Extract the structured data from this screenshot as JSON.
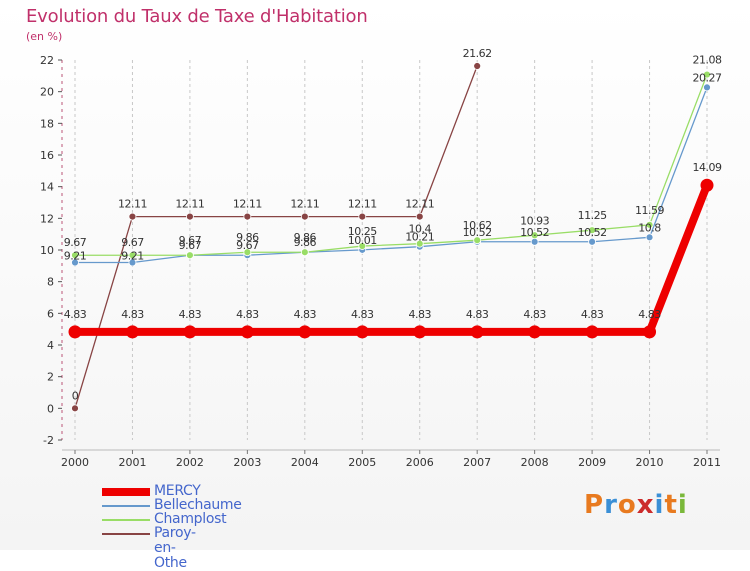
{
  "title": "Evolution du Taux de Taxe d'Habitation",
  "subtitle": "(en %)",
  "logo": {
    "text": "Proxiti",
    "colors": [
      "#e87a1f",
      "#3a8fd6",
      "#e87a1f",
      "#cc2b2b",
      "#3a8fd6",
      "#e87a1f",
      "#7ab83a"
    ]
  },
  "chart_data": {
    "type": "line",
    "title": "Evolution du Taux de Taxe d'Habitation",
    "ylabel": "(en %)",
    "xlabel": "",
    "ylim": [
      -2,
      22
    ],
    "yticks": [
      -2,
      0,
      2,
      4,
      6,
      8,
      10,
      12,
      14,
      16,
      18,
      20,
      22
    ],
    "grid": "vertical-dashed",
    "categories": [
      "2000",
      "2001",
      "2002",
      "2003",
      "2004",
      "2005",
      "2006",
      "2007",
      "2008",
      "2009",
      "2010",
      "2011"
    ],
    "series": [
      {
        "name": "MERCY",
        "color": "#ee0000",
        "values": [
          4.83,
          4.83,
          4.83,
          4.83,
          4.83,
          4.83,
          4.83,
          4.83,
          4.83,
          4.83,
          4.83,
          14.09
        ],
        "labels": [
          "4.83",
          "4.83",
          "4.83",
          "4.83",
          "4.83",
          "4.83",
          "4.83",
          "4.83",
          "4.83",
          "4.83",
          "4.83",
          "14.09"
        ]
      },
      {
        "name": "Bellechaume",
        "color": "#6699cc",
        "values": [
          9.21,
          9.21,
          9.67,
          9.67,
          9.86,
          10.01,
          10.21,
          10.52,
          10.52,
          10.52,
          10.8,
          20.27
        ],
        "labels": [
          "9.21",
          "9.21",
          "9.67",
          "9.67",
          "9.86",
          "10.01",
          "10.21",
          "10.52",
          "10.52",
          "10.52",
          "10.8",
          "20.27"
        ]
      },
      {
        "name": "Champlost",
        "color": "#99dd66",
        "values": [
          9.67,
          9.67,
          9.67,
          9.86,
          9.86,
          10.25,
          10.4,
          10.62,
          10.93,
          11.25,
          11.59,
          21.08
        ],
        "labels": [
          "9.67",
          "9.67",
          "9.67",
          "9.86",
          "9.86",
          "10.25",
          "10.4",
          "10.62",
          "10.93",
          "11.25",
          "11.59",
          "21.08"
        ]
      },
      {
        "name": "Paroy-en-Othe",
        "color": "#884444",
        "values": [
          0,
          12.11,
          12.11,
          12.11,
          12.11,
          12.11,
          12.11,
          21.62,
          null,
          null,
          null,
          null
        ],
        "labels": [
          "0",
          "12.11",
          "12.11",
          "12.11",
          "12.11",
          "12.11",
          "12.11",
          "21.62",
          null,
          null,
          null,
          null
        ]
      }
    ],
    "legend_position": "bottom-left"
  }
}
